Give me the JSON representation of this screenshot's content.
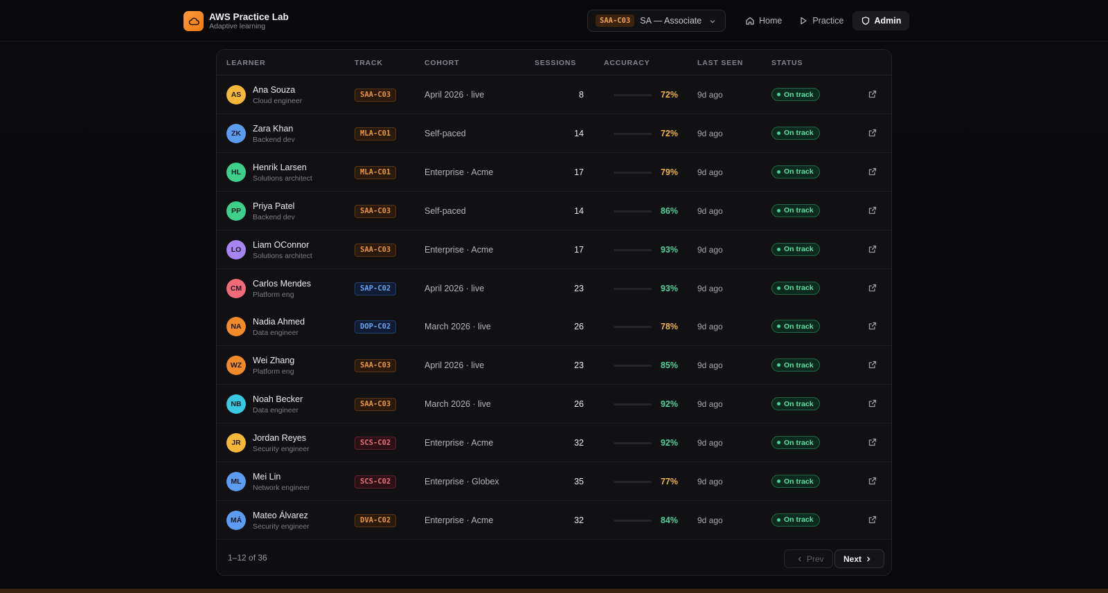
{
  "brand": {
    "title": "AWS Practice Lab",
    "subtitle": "Adaptive learning"
  },
  "track_selector": {
    "code": "SAA-C03",
    "name": "SA — Associate"
  },
  "nav": [
    {
      "label": "Home",
      "icon": "home-icon",
      "active": false
    },
    {
      "label": "Practice",
      "icon": "play-icon",
      "active": false
    },
    {
      "label": "Admin",
      "icon": "shield-icon",
      "active": true
    }
  ],
  "table": {
    "columns": [
      "LEARNER",
      "TRACK",
      "COHORT",
      "SESSIONS",
      "ACCURACY",
      "LAST SEEN",
      "STATUS"
    ],
    "rows": [
      {
        "initials": "AS",
        "avatar_color": "#f5b83a",
        "name": "Ana Souza",
        "role": "Cloud engineer",
        "track": "SAA-C03",
        "track_color": "orange",
        "cohort": "April 2026 · live",
        "sessions": "8",
        "accuracy": "72%",
        "accuracy_pct": 72,
        "last_seen": "9d ago",
        "status": "On track"
      },
      {
        "initials": "ZK",
        "avatar_color": "#5b9cf0",
        "name": "Zara Khan",
        "role": "Backend dev",
        "track": "MLA-C01",
        "track_color": "orange",
        "cohort": "Self-paced",
        "sessions": "14",
        "accuracy": "72%",
        "accuracy_pct": 72,
        "last_seen": "9d ago",
        "status": "On track"
      },
      {
        "initials": "HL",
        "avatar_color": "#3ecf8a",
        "name": "Henrik Larsen",
        "role": "Solutions architect",
        "track": "MLA-C01",
        "track_color": "orange",
        "cohort": "Enterprise · Acme",
        "sessions": "17",
        "accuracy": "79%",
        "accuracy_pct": 79,
        "last_seen": "9d ago",
        "status": "On track"
      },
      {
        "initials": "PP",
        "avatar_color": "#3ecf8a",
        "name": "Priya Patel",
        "role": "Backend dev",
        "track": "SAA-C03",
        "track_color": "orange",
        "cohort": "Self-paced",
        "sessions": "14",
        "accuracy": "86%",
        "accuracy_pct": 86,
        "last_seen": "9d ago",
        "status": "On track"
      },
      {
        "initials": "LO",
        "avatar_color": "#a585f0",
        "name": "Liam OConnor",
        "role": "Solutions architect",
        "track": "SAA-C03",
        "track_color": "orange",
        "cohort": "Enterprise · Acme",
        "sessions": "17",
        "accuracy": "93%",
        "accuracy_pct": 93,
        "last_seen": "9d ago",
        "status": "On track"
      },
      {
        "initials": "CM",
        "avatar_color": "#f06a7a",
        "name": "Carlos Mendes",
        "role": "Platform eng",
        "track": "SAP-C02",
        "track_color": "blue",
        "cohort": "April 2026 · live",
        "sessions": "23",
        "accuracy": "93%",
        "accuracy_pct": 93,
        "last_seen": "9d ago",
        "status": "On track"
      },
      {
        "initials": "NA",
        "avatar_color": "#f08a2a",
        "name": "Nadia Ahmed",
        "role": "Data engineer",
        "track": "DOP-C02",
        "track_color": "blue",
        "cohort": "March 2026 · live",
        "sessions": "26",
        "accuracy": "78%",
        "accuracy_pct": 78,
        "last_seen": "9d ago",
        "status": "On track"
      },
      {
        "initials": "WZ",
        "avatar_color": "#f08a2a",
        "name": "Wei Zhang",
        "role": "Platform eng",
        "track": "SAA-C03",
        "track_color": "orange",
        "cohort": "April 2026 · live",
        "sessions": "23",
        "accuracy": "85%",
        "accuracy_pct": 85,
        "last_seen": "9d ago",
        "status": "On track"
      },
      {
        "initials": "NB",
        "avatar_color": "#38c9e0",
        "name": "Noah Becker",
        "role": "Data engineer",
        "track": "SAA-C03",
        "track_color": "orange",
        "cohort": "March 2026 · live",
        "sessions": "26",
        "accuracy": "92%",
        "accuracy_pct": 92,
        "last_seen": "9d ago",
        "status": "On track"
      },
      {
        "initials": "JR",
        "avatar_color": "#f5b83a",
        "name": "Jordan Reyes",
        "role": "Security engineer",
        "track": "SCS-C02",
        "track_color": "red",
        "cohort": "Enterprise · Acme",
        "sessions": "32",
        "accuracy": "92%",
        "accuracy_pct": 92,
        "last_seen": "9d ago",
        "status": "On track"
      },
      {
        "initials": "ML",
        "avatar_color": "#5b9cf0",
        "name": "Mei Lin",
        "role": "Network engineer",
        "track": "SCS-C02",
        "track_color": "red",
        "cohort": "Enterprise · Globex",
        "sessions": "35",
        "accuracy": "77%",
        "accuracy_pct": 77,
        "last_seen": "9d ago",
        "status": "On track"
      },
      {
        "initials": "MÁ",
        "avatar_color": "#5b9cf0",
        "name": "Mateo Álvarez",
        "role": "Security engineer",
        "track": "DVA-C02",
        "track_color": "orange",
        "cohort": "Enterprise · Acme",
        "sessions": "32",
        "accuracy": "84%",
        "accuracy_pct": 84,
        "last_seen": "9d ago",
        "status": "On track"
      }
    ]
  },
  "pagination": {
    "range": "1–12 of 36",
    "prev_label": "Prev",
    "next_label": "Next"
  },
  "colors": {
    "amber": "#f0b44a",
    "green": "#4fd19a",
    "accent": "#f07a14"
  }
}
